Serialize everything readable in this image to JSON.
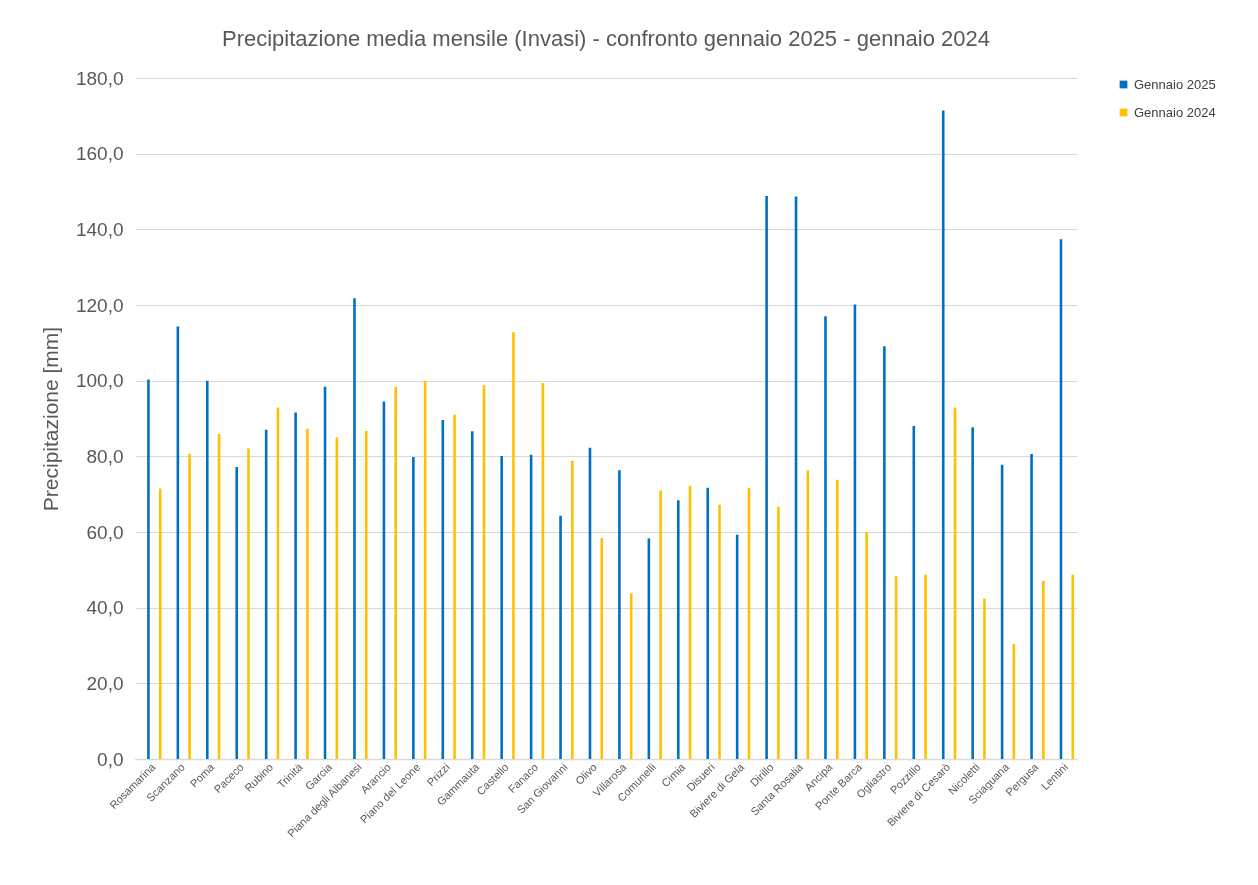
{
  "chart_data": {
    "type": "bar",
    "title": "Precipitazione media mensile (Invasi) - confronto gennaio 2025 - gennaio 2024",
    "ylabel": "Precipitazione [mm]",
    "categories": [
      "Rosamarina",
      "Scanzano",
      "Poma",
      "Paceco",
      "Rubino",
      "Trinità",
      "Garcia",
      "Piana degli Albanesi",
      "Arancio",
      "Piano del Leone",
      "Prizzi",
      "Gammauta",
      "Castello",
      "Fanaco",
      "San Giovanni",
      "Olivo",
      "Villarosa",
      "Comunelli",
      "Cimia",
      "Disueri",
      "Biviere di Gela",
      "Dirillo",
      "Santa Rosalia",
      "Ancipa",
      "Ponte Barca",
      "Ogliastro",
      "Pozzillo",
      "Biviere di Cesarò",
      "Nicoletti",
      "Sciaguana",
      "Pergusa",
      "Lentini"
    ],
    "series": [
      {
        "name": "Gennaio 2025",
        "color": "#0070c0",
        "values": [
          100.3,
          114.3,
          100.0,
          77.2,
          87.0,
          91.6,
          98.4,
          121.8,
          94.5,
          79.8,
          89.6,
          86.6,
          80.1,
          80.4,
          64.3,
          82.3,
          76.3,
          58.3,
          68.4,
          71.7,
          59.3,
          148.8,
          148.7,
          117.0,
          120.1,
          109.1,
          88.0,
          171.4,
          87.7,
          77.8,
          80.6,
          137.4
        ]
      },
      {
        "name": "Gennaio 2024",
        "color": "#ffc000",
        "values": [
          71.5,
          80.7,
          85.9,
          82.1,
          92.9,
          87.3,
          85.0,
          86.7,
          98.4,
          100.0,
          91.0,
          98.8,
          112.8,
          99.4,
          78.8,
          58.4,
          43.8,
          71.0,
          72.2,
          67.2,
          71.7,
          66.7,
          76.3,
          73.8,
          60.0,
          48.3,
          48.7,
          92.9,
          42.4,
          30.4,
          47.1,
          48.7
        ]
      }
    ],
    "ylim": [
      0,
      180
    ],
    "yticks": [
      {
        "value": 0,
        "label": "0,0"
      },
      {
        "value": 20,
        "label": "20,0"
      },
      {
        "value": 40,
        "label": "40,0"
      },
      {
        "value": 60,
        "label": "60,0"
      },
      {
        "value": 80,
        "label": "80,0"
      },
      {
        "value": 100,
        "label": "100,0"
      },
      {
        "value": 120,
        "label": "120,0"
      },
      {
        "value": 140,
        "label": "140,0"
      },
      {
        "value": 160,
        "label": "160,0"
      },
      {
        "value": 180,
        "label": "180,0"
      }
    ],
    "grid": "y",
    "legend": "right"
  }
}
